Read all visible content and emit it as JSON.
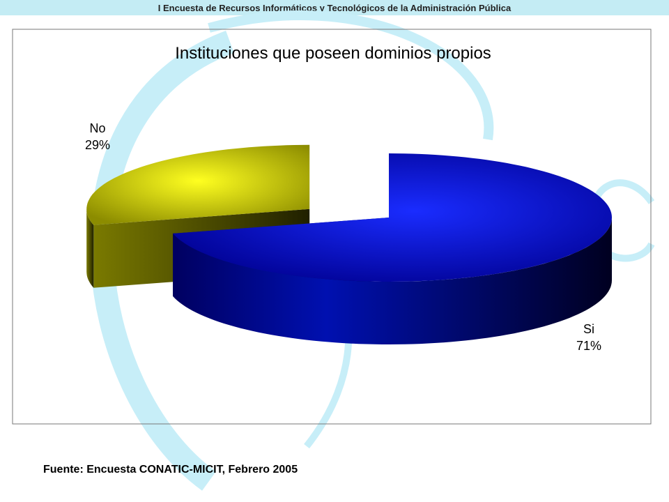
{
  "header": {
    "title": "I Encuesta de Recursos Informáticos y Tecnológicos de la Administración Pública"
  },
  "chart_data": {
    "type": "pie",
    "title": "Instituciones que poseen dominios propios",
    "categories": [
      "Si",
      "No"
    ],
    "values": [
      71,
      29
    ],
    "value_labels": [
      "71%",
      "29%"
    ],
    "colors": [
      "#0a14f0",
      "#f0f000"
    ]
  },
  "footer": {
    "source": "Fuente: Encuesta CONATIC-MICIT, Febrero 2005"
  }
}
